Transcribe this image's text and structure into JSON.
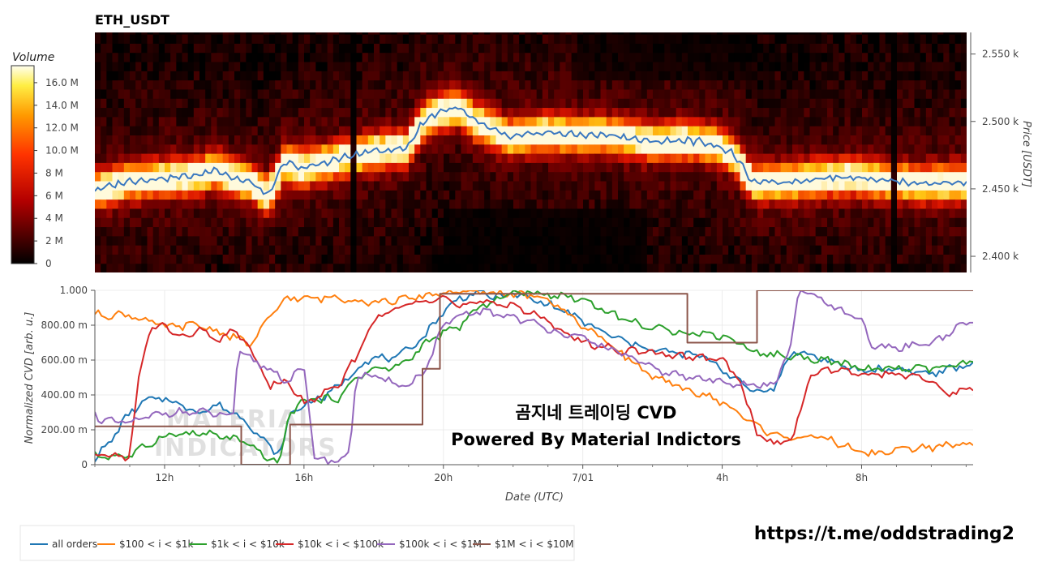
{
  "title": "ETH_USDT",
  "colorbar": {
    "label": "Volume",
    "ticks": [
      "0",
      "2 M",
      "4 M",
      "6 M",
      "8 M",
      "10.0 M",
      "12.0 M",
      "14.0 M",
      "16.0 M"
    ],
    "tick_values": [
      0,
      2,
      4,
      6,
      8,
      10,
      12,
      14,
      16
    ],
    "max": 17.5
  },
  "heatmap": {
    "ylabel": "Price [USDT]",
    "yticks": [
      "2.400 k",
      "2.450 k",
      "2.500 k",
      "2.550 k"
    ],
    "ytick_values": [
      2400,
      2450,
      2500,
      2550
    ],
    "ylim": [
      2388,
      2566
    ]
  },
  "cvd": {
    "ylabel": "Normalized CVD [arb. u.]",
    "yticks": [
      "0",
      "200.00 m",
      "400.00 m",
      "600.00 m",
      "800.00 m",
      "1.000"
    ],
    "ytick_values": [
      0,
      0.2,
      0.4,
      0.6,
      0.8,
      1.0
    ],
    "xlabel": "Date (UTC)",
    "xticks": [
      "12h",
      "16h",
      "20h",
      "7/01",
      "4h",
      "8h"
    ],
    "xtick_values": [
      12,
      16,
      20,
      24,
      28,
      32
    ],
    "xlim": [
      10,
      35.2
    ]
  },
  "overlay": {
    "line1": "곰지네 트레이딩 CVD",
    "line2": "Powered By Material Indictors",
    "watermark1": "MATERIAL",
    "watermark2": "INDICATORS",
    "link": "https://t.me/oddstrading2"
  },
  "legend": [
    {
      "label": "all orders",
      "color": "#1f77b4"
    },
    {
      "label": "$100 < i < $1k",
      "color": "#ff7f0e"
    },
    {
      "label": "$1k < i < $10k",
      "color": "#2ca02c"
    },
    {
      "label": "$10k < i < $100k",
      "color": "#d62728"
    },
    {
      "label": "$100k < i < $1M",
      "color": "#9467bd"
    },
    {
      "label": "$1M < i < $10M",
      "color": "#8c564b"
    }
  ],
  "chart_data": [
    {
      "type": "heatmap",
      "title": "ETH_USDT",
      "x_unit": "hours since 6/30 00:00 UTC",
      "y_unit": "USDT",
      "ylim": [
        2388,
        2566
      ],
      "price_line": {
        "color": "#3a78c0",
        "x": [
          10,
          11,
          12,
          13,
          13.5,
          14,
          14.5,
          15,
          15.5,
          16,
          17,
          18,
          19,
          19.5,
          20,
          20.5,
          21,
          22,
          23,
          24,
          25,
          26,
          27,
          27.5,
          28,
          28.5,
          29,
          30,
          31,
          32,
          33,
          34,
          35.2
        ],
        "y": [
          2449,
          2456,
          2458,
          2460,
          2465,
          2458,
          2455,
          2445,
          2470,
          2465,
          2472,
          2478,
          2480,
          2500,
          2508,
          2510,
          2500,
          2488,
          2492,
          2490,
          2490,
          2485,
          2486,
          2485,
          2482,
          2475,
          2455,
          2455,
          2458,
          2459,
          2456,
          2454,
          2455
        ]
      }
    },
    {
      "type": "line",
      "xlabel": "Date (UTC)",
      "ylabel": "Normalized CVD [arb. u.]",
      "ylim": [
        0,
        1.0
      ],
      "xlim": [
        10,
        35.2
      ],
      "series": [
        {
          "name": "all orders",
          "color": "#1f77b4",
          "x": [
            10,
            10.5,
            11,
            11.5,
            12,
            13,
            13.5,
            14,
            14.5,
            15,
            15.3,
            15.6,
            16,
            16.5,
            17,
            17.5,
            18,
            18.5,
            19,
            19.5,
            20,
            20.5,
            21,
            21.5,
            22,
            22.5,
            23,
            23.5,
            24,
            25,
            26,
            27,
            27.5,
            28,
            28.5,
            29,
            29.5,
            30,
            30.5,
            31,
            31.5,
            32,
            33,
            34,
            35.2
          ],
          "y": [
            0.03,
            0.15,
            0.3,
            0.37,
            0.38,
            0.3,
            0.34,
            0.3,
            0.22,
            0.1,
            0.06,
            0.28,
            0.35,
            0.38,
            0.45,
            0.55,
            0.62,
            0.6,
            0.66,
            0.75,
            0.88,
            0.96,
            0.99,
            0.96,
            0.98,
            0.95,
            0.92,
            0.88,
            0.82,
            0.72,
            0.66,
            0.63,
            0.62,
            0.55,
            0.47,
            0.42,
            0.44,
            0.65,
            0.63,
            0.6,
            0.56,
            0.54,
            0.55,
            0.52,
            0.58
          ]
        },
        {
          "name": "$100 < i < $1k",
          "color": "#ff7f0e",
          "x": [
            10,
            11,
            12,
            13,
            14,
            14.5,
            15,
            15.5,
            16,
            17,
            18,
            19,
            19.5,
            20,
            21,
            22,
            23,
            24,
            25,
            26,
            27,
            28,
            29,
            29.5,
            30,
            31,
            32,
            32.5,
            33,
            34,
            35.2
          ],
          "y": [
            0.86,
            0.86,
            0.79,
            0.8,
            0.73,
            0.69,
            0.84,
            0.96,
            0.95,
            0.96,
            0.93,
            0.95,
            0.97,
            0.99,
            0.99,
            0.98,
            0.95,
            0.8,
            0.66,
            0.5,
            0.43,
            0.36,
            0.22,
            0.17,
            0.16,
            0.15,
            0.07,
            0.06,
            0.09,
            0.1,
            0.12
          ]
        },
        {
          "name": "$1k < i < $10k",
          "color": "#2ca02c",
          "x": [
            10,
            11,
            12,
            13,
            14,
            14.5,
            15,
            15.3,
            15.6,
            16,
            17,
            17.5,
            18,
            18.5,
            19,
            19.5,
            20,
            20.5,
            21,
            22,
            23,
            24,
            25,
            26,
            27,
            28,
            28.5,
            29,
            30,
            31,
            32,
            33,
            34,
            35.2
          ],
          "y": [
            0.05,
            0.05,
            0.17,
            0.18,
            0.15,
            0.1,
            0.03,
            0.02,
            0.3,
            0.37,
            0.38,
            0.5,
            0.55,
            0.55,
            0.6,
            0.7,
            0.75,
            0.8,
            0.9,
            0.99,
            0.98,
            0.95,
            0.85,
            0.78,
            0.76,
            0.74,
            0.7,
            0.64,
            0.62,
            0.6,
            0.55,
            0.55,
            0.55,
            0.58
          ]
        },
        {
          "name": "$10k < i < $100k",
          "color": "#d62728",
          "x": [
            10,
            11,
            11.3,
            11.6,
            12,
            12.5,
            13,
            13.5,
            14,
            14.5,
            15,
            15.5,
            16,
            16.5,
            17,
            17.5,
            18,
            18.5,
            19,
            19.5,
            20,
            20.5,
            21,
            22,
            23,
            24,
            25,
            26,
            27,
            28,
            28.5,
            29,
            29.5,
            30,
            30.5,
            31,
            32,
            33,
            34,
            34.5,
            35.2
          ],
          "y": [
            0.05,
            0.05,
            0.55,
            0.78,
            0.8,
            0.72,
            0.78,
            0.7,
            0.78,
            0.65,
            0.45,
            0.48,
            0.35,
            0.4,
            0.45,
            0.62,
            0.83,
            0.88,
            0.92,
            0.95,
            0.97,
            0.9,
            0.93,
            0.92,
            0.82,
            0.7,
            0.66,
            0.64,
            0.62,
            0.6,
            0.48,
            0.18,
            0.12,
            0.14,
            0.5,
            0.55,
            0.52,
            0.52,
            0.48,
            0.4,
            0.45
          ]
        },
        {
          "name": "$100k < i < $1M",
          "color": "#9467bd",
          "x": [
            10,
            10.2,
            11,
            12,
            13,
            14,
            14.1,
            14.5,
            15,
            15.5,
            16,
            16.3,
            16.6,
            17,
            17.3,
            17.5,
            18,
            19,
            19.5,
            20,
            20.5,
            21,
            22,
            23,
            24,
            25,
            26,
            27,
            28,
            29,
            29.5,
            30,
            30.2,
            30.6,
            31,
            32,
            32.3,
            33,
            34,
            35.2
          ],
          "y": [
            0.3,
            0.25,
            0.24,
            0.3,
            0.3,
            0.28,
            0.65,
            0.6,
            0.55,
            0.48,
            0.55,
            0.05,
            0.02,
            0.03,
            0.05,
            0.52,
            0.5,
            0.45,
            0.55,
            0.8,
            0.85,
            0.88,
            0.85,
            0.78,
            0.72,
            0.65,
            0.55,
            0.5,
            0.48,
            0.45,
            0.46,
            0.7,
            1.0,
            0.98,
            0.92,
            0.82,
            0.68,
            0.67,
            0.7,
            0.83
          ]
        },
        {
          "name": "$1M < i < $10M",
          "color": "#8c564b",
          "x": [
            10,
            10.3,
            14.2,
            14.2,
            15.6,
            15.6,
            19.4,
            19.4,
            19.9,
            19.9,
            27.0,
            27.0,
            29.0,
            29.0,
            35.2
          ],
          "y": [
            0.22,
            0.22,
            0.22,
            0.0,
            0.0,
            0.23,
            0.23,
            0.55,
            0.55,
            0.98,
            0.98,
            0.7,
            0.7,
            1.0,
            1.0
          ]
        }
      ]
    }
  ]
}
